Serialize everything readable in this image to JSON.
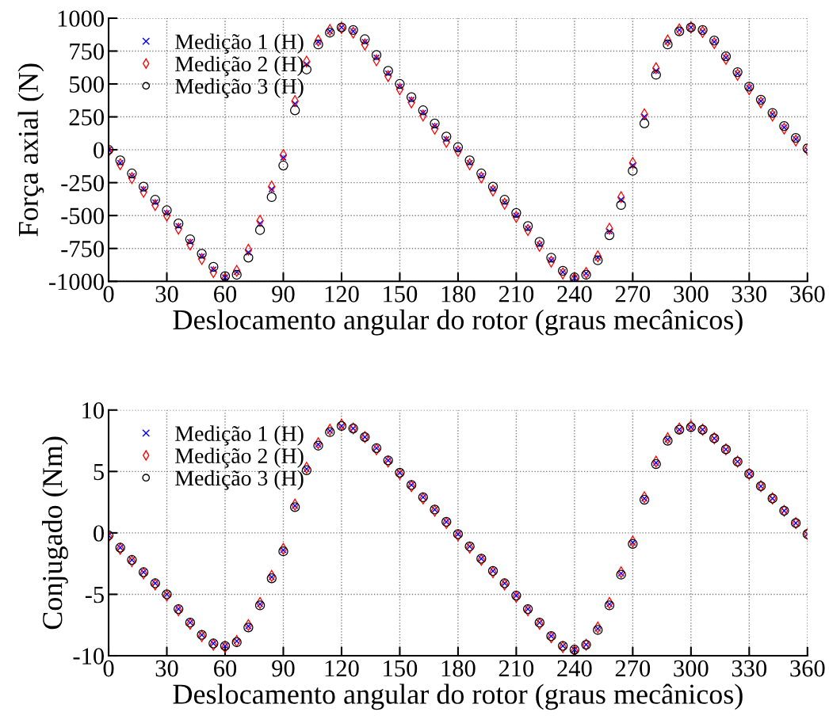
{
  "chart_data": [
    {
      "type": "scatter",
      "xlabel": "Deslocamento angular do rotor (graus mecânicos)",
      "ylabel": "Força axial (N)",
      "xlim": [
        0,
        360
      ],
      "xticks": [
        0,
        30,
        60,
        90,
        120,
        150,
        180,
        210,
        240,
        270,
        300,
        330,
        360
      ],
      "ylim": [
        -1000,
        1000
      ],
      "yticks": [
        -1000,
        -750,
        -500,
        -250,
        0,
        250,
        500,
        750,
        1000
      ],
      "grid": true,
      "legend": "top left",
      "x": [
        0,
        6,
        12,
        18,
        24,
        30,
        36,
        42,
        48,
        54,
        60,
        66,
        72,
        78,
        84,
        90,
        96,
        102,
        108,
        114,
        120,
        126,
        132,
        138,
        144,
        150,
        156,
        162,
        168,
        174,
        180,
        186,
        192,
        198,
        204,
        210,
        216,
        222,
        228,
        234,
        240,
        246,
        252,
        258,
        264,
        270,
        276,
        282,
        288,
        294,
        300,
        306,
        312,
        318,
        324,
        330,
        336,
        342,
        348,
        354,
        360
      ],
      "series": [
        {
          "name": "Medição 1 (H)",
          "color": "#0000ff",
          "marker": "cross",
          "values": [
            0,
            -100,
            -200,
            -300,
            -400,
            -480,
            -580,
            -700,
            -810,
            -910,
            -970,
            -930,
            -780,
            -560,
            -300,
            -60,
            350,
            650,
            820,
            900,
            930,
            900,
            820,
            700,
            580,
            480,
            380,
            280,
            180,
            80,
            0,
            -100,
            -200,
            -300,
            -400,
            -500,
            -600,
            -720,
            -840,
            -930,
            -975,
            -940,
            -820,
            -620,
            -380,
            -120,
            250,
            600,
            820,
            910,
            930,
            900,
            820,
            700,
            580,
            470,
            370,
            270,
            170,
            80,
            0
          ]
        },
        {
          "name": "Medição 2 (H)",
          "color": "#ff0000",
          "marker": "diamond",
          "values": [
            -10,
            -110,
            -215,
            -320,
            -420,
            -500,
            -600,
            -720,
            -830,
            -930,
            -980,
            -920,
            -760,
            -540,
            -280,
            -40,
            370,
            670,
            830,
            910,
            925,
            890,
            800,
            680,
            560,
            460,
            360,
            260,
            160,
            60,
            -10,
            -110,
            -210,
            -310,
            -410,
            -510,
            -610,
            -730,
            -850,
            -940,
            -980,
            -935,
            -810,
            -600,
            -360,
            -100,
            270,
            620,
            830,
            915,
            930,
            895,
            810,
            690,
            570,
            460,
            360,
            260,
            160,
            70,
            0
          ]
        },
        {
          "name": "Medição 3 (H)",
          "color": "#000000",
          "marker": "circle",
          "values": [
            0,
            -80,
            -180,
            -280,
            -380,
            -460,
            -560,
            -680,
            -790,
            -890,
            -960,
            -950,
            -820,
            -610,
            -360,
            -120,
            300,
            610,
            800,
            890,
            930,
            910,
            840,
            720,
            600,
            500,
            400,
            300,
            200,
            100,
            20,
            -80,
            -180,
            -280,
            -380,
            -480,
            -580,
            -700,
            -820,
            -920,
            -970,
            -950,
            -840,
            -650,
            -420,
            -160,
            200,
            570,
            800,
            900,
            930,
            910,
            830,
            710,
            590,
            480,
            380,
            280,
            180,
            90,
            10
          ]
        }
      ]
    },
    {
      "type": "scatter",
      "xlabel": "Deslocamento angular do rotor (graus mecânicos)",
      "ylabel": "Conjugado (Nm)",
      "xlim": [
        0,
        360
      ],
      "xticks": [
        0,
        30,
        60,
        90,
        120,
        150,
        180,
        210,
        240,
        270,
        300,
        330,
        360
      ],
      "ylim": [
        -10,
        10
      ],
      "yticks": [
        -10,
        -5,
        0,
        5,
        10
      ],
      "grid": true,
      "legend": "top left",
      "x": [
        0,
        6,
        12,
        18,
        24,
        30,
        36,
        42,
        48,
        54,
        60,
        66,
        72,
        78,
        84,
        90,
        96,
        102,
        108,
        114,
        120,
        126,
        132,
        138,
        144,
        150,
        156,
        162,
        168,
        174,
        180,
        186,
        192,
        198,
        204,
        210,
        216,
        222,
        228,
        234,
        240,
        246,
        252,
        258,
        264,
        270,
        276,
        282,
        288,
        294,
        300,
        306,
        312,
        318,
        324,
        330,
        336,
        342,
        348,
        354,
        360
      ],
      "series": [
        {
          "name": "Medição 1 (H)",
          "color": "#0000ff",
          "marker": "cross",
          "values": [
            -0.2,
            -1.2,
            -2.2,
            -3.2,
            -4.1,
            -5.0,
            -6.2,
            -7.3,
            -8.3,
            -9.0,
            -9.2,
            -8.8,
            -7.6,
            -5.8,
            -3.6,
            -1.4,
            2.2,
            5.2,
            7.2,
            8.3,
            8.7,
            8.5,
            7.8,
            6.9,
            5.9,
            4.9,
            3.9,
            2.9,
            1.9,
            0.9,
            -0.1,
            -1.1,
            -2.1,
            -3.1,
            -4.1,
            -5.1,
            -6.2,
            -7.3,
            -8.4,
            -9.2,
            -9.5,
            -9.1,
            -7.8,
            -5.8,
            -3.3,
            -0.8,
            2.8,
            5.7,
            7.6,
            8.4,
            8.6,
            8.4,
            7.7,
            6.8,
            5.8,
            4.8,
            3.8,
            2.8,
            1.8,
            0.8,
            -0.1
          ]
        },
        {
          "name": "Medição 2 (H)",
          "color": "#ff0000",
          "marker": "diamond",
          "values": [
            -0.3,
            -1.3,
            -2.3,
            -3.3,
            -4.2,
            -5.1,
            -6.3,
            -7.4,
            -8.4,
            -9.1,
            -9.3,
            -8.8,
            -7.5,
            -5.7,
            -3.5,
            -1.3,
            2.3,
            5.3,
            7.3,
            8.4,
            8.8,
            8.5,
            7.8,
            6.8,
            5.8,
            4.8,
            3.8,
            2.8,
            1.8,
            0.8,
            -0.2,
            -1.2,
            -2.2,
            -3.2,
            -4.2,
            -5.2,
            -6.3,
            -7.4,
            -8.5,
            -9.3,
            -9.6,
            -9.1,
            -7.7,
            -5.7,
            -3.2,
            -0.7,
            2.9,
            5.8,
            7.7,
            8.5,
            8.7,
            8.4,
            7.7,
            6.8,
            5.8,
            4.8,
            3.8,
            2.8,
            1.8,
            0.8,
            -0.1
          ]
        },
        {
          "name": "Medição 3 (H)",
          "color": "#000000",
          "marker": "circle",
          "values": [
            -0.2,
            -1.2,
            -2.2,
            -3.2,
            -4.1,
            -5.0,
            -6.2,
            -7.3,
            -8.3,
            -9.0,
            -9.2,
            -8.9,
            -7.7,
            -5.9,
            -3.7,
            -1.5,
            2.1,
            5.1,
            7.1,
            8.2,
            8.7,
            8.5,
            7.8,
            6.9,
            5.9,
            4.9,
            3.9,
            2.9,
            1.9,
            0.9,
            -0.1,
            -1.1,
            -2.1,
            -3.1,
            -4.1,
            -5.1,
            -6.2,
            -7.3,
            -8.4,
            -9.2,
            -9.5,
            -9.1,
            -7.9,
            -5.9,
            -3.4,
            -0.9,
            2.7,
            5.6,
            7.5,
            8.4,
            8.6,
            8.4,
            7.7,
            6.8,
            5.8,
            4.8,
            3.8,
            2.8,
            1.8,
            0.8,
            -0.1
          ]
        }
      ]
    }
  ]
}
